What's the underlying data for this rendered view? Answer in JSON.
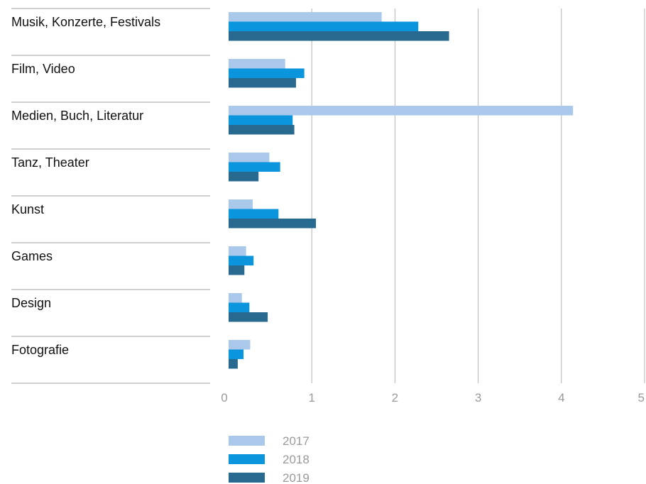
{
  "colors": {
    "series": [
      "#a9c8ea",
      "#0a95dd",
      "#27698f"
    ],
    "grid": "#b4b4b4",
    "separator": "#a0a0a0",
    "label": "#111111",
    "tick": "#9a9a9a"
  },
  "chart_data": {
    "type": "bar",
    "orientation": "horizontal",
    "categories": [
      "Musik, Konzerte, Festivals",
      "Film, Video",
      "Medien, Buch, Literatur",
      "Tanz, Theater",
      "Kunst",
      "Games",
      "Design",
      "Fotografie"
    ],
    "series": [
      {
        "name": "2017",
        "values": [
          1.84,
          0.68,
          4.14,
          0.49,
          0.29,
          0.21,
          0.16,
          0.26
        ]
      },
      {
        "name": "2018",
        "values": [
          2.28,
          0.91,
          0.77,
          0.62,
          0.6,
          0.3,
          0.25,
          0.18
        ]
      },
      {
        "name": "2019",
        "values": [
          2.65,
          0.81,
          0.79,
          0.36,
          1.05,
          0.19,
          0.47,
          0.11
        ]
      }
    ],
    "title": "",
    "xlabel": "",
    "ylabel": "",
    "xlim": [
      0,
      5
    ],
    "xticks": [
      "0",
      "1",
      "2",
      "3",
      "4",
      "5"
    ],
    "grid": true,
    "legend_position": "bottom"
  }
}
